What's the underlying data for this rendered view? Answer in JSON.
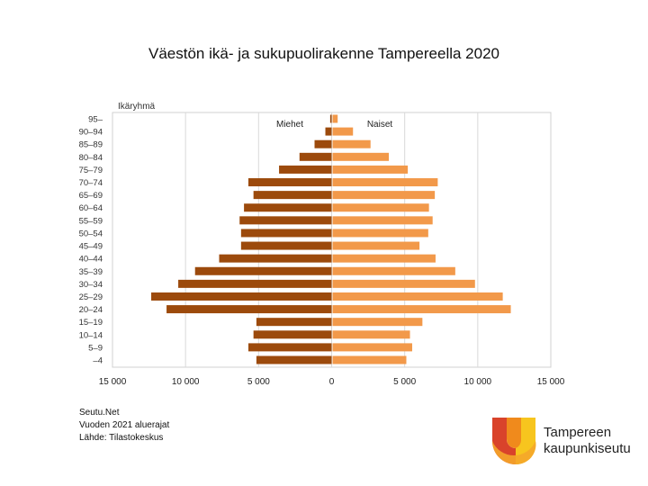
{
  "title": "Väestön ikä- ja sukupuolirakenne Tampereella 2020",
  "source_lines": [
    "Seutu.Net",
    "Vuoden 2021 aluerajat",
    "Lähde: Tilastokeskus"
  ],
  "logo": {
    "text_lines": [
      "Tampereen",
      "kaupunkiseutu"
    ],
    "colors": [
      "#d9432b",
      "#f08a1c",
      "#f7c51e",
      "#f4a62a"
    ]
  },
  "chart_data": {
    "type": "bar",
    "orientation": "horizontal-population-pyramid",
    "title": "Väestön ikä- ja sukupuolirakenne Tampereella 2020",
    "ylabel": "Ikäryhmä",
    "categories": [
      "95–",
      "90–94",
      "85–89",
      "80–84",
      "75–79",
      "70–74",
      "65–69",
      "60–64",
      "55–59",
      "50–54",
      "45–49",
      "40–44",
      "35–39",
      "30–34",
      "25–29",
      "20–24",
      "15–19",
      "10–14",
      "5–9",
      "–4"
    ],
    "series": [
      {
        "name": "Miehet",
        "color": "#9c4a0c",
        "side": "left",
        "values": [
          100,
          430,
          1170,
          2200,
          3600,
          5700,
          5350,
          6000,
          6300,
          6200,
          6200,
          7700,
          9350,
          10500,
          12350,
          11300,
          5150,
          5350,
          5700,
          5150
        ]
      },
      {
        "name": "Naiset",
        "color": "#f2994a",
        "side": "right",
        "values": [
          350,
          1400,
          2600,
          3850,
          5150,
          7200,
          7000,
          6600,
          6850,
          6550,
          5950,
          7050,
          8400,
          9750,
          11650,
          12200,
          6150,
          5300,
          5450,
          5050
        ]
      }
    ],
    "xlim": [
      -15000,
      15000
    ],
    "xticks": [
      -15000,
      -10000,
      -5000,
      0,
      5000,
      10000,
      15000
    ],
    "xtick_labels": [
      "15 000",
      "10 000",
      "5 000",
      "0",
      "5 000",
      "10 000",
      "15 000"
    ],
    "grid": true,
    "legend": "series labels inside plot at top"
  }
}
